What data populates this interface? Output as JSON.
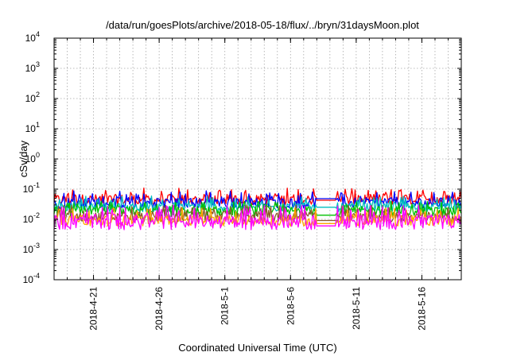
{
  "chart_data": {
    "type": "line",
    "title": "/data/run/goesPlots/archive/2018-05-18/flux/../bryn/31daysMoon.plot",
    "xlabel": "Coordinated Universal Time (UTC)",
    "ylabel": "cSv/day",
    "yscale": "log",
    "ylim": [
      0.0001,
      10000
    ],
    "xlim": [
      "2018-04-18T00:00",
      "2018-05-19T00:00"
    ],
    "grid": true,
    "legend": "none",
    "y_ticks": [
      {
        "base": "10",
        "exp": "-4",
        "value": 0.0001
      },
      {
        "base": "10",
        "exp": "-3",
        "value": 0.001
      },
      {
        "base": "10",
        "exp": "-2",
        "value": 0.01
      },
      {
        "base": "10",
        "exp": "-1",
        "value": 0.1
      },
      {
        "base": "10",
        "exp": "0",
        "value": 1
      },
      {
        "base": "10",
        "exp": "1",
        "value": 10
      },
      {
        "base": "10",
        "exp": "2",
        "value": 100
      },
      {
        "base": "10",
        "exp": "3",
        "value": 1000
      },
      {
        "base": "10",
        "exp": "4",
        "value": 10000
      }
    ],
    "x_ticks": [
      {
        "label": "2018-4-21",
        "date": "2018-04-21"
      },
      {
        "label": "2018-4-26",
        "date": "2018-04-26"
      },
      {
        "label": "2018-5-1",
        "date": "2018-05-01"
      },
      {
        "label": "2018-5-6",
        "date": "2018-05-06"
      },
      {
        "label": "2018-5-11",
        "date": "2018-05-11"
      },
      {
        "label": "2018-5-16",
        "date": "2018-05-16"
      }
    ],
    "data_gap": [
      "2018-05-08T00:00",
      "2018-05-09T12:00"
    ],
    "series": [
      {
        "color": "#ff0000",
        "baseline": 0.045,
        "spike_max": 0.11,
        "variation": 0.35
      },
      {
        "color": "#0000ff",
        "baseline": 0.035,
        "spike_max": 0.09,
        "variation": 0.35
      },
      {
        "color": "#00bfbf",
        "baseline": 0.025,
        "spike_max": 0.06,
        "variation": 0.3
      },
      {
        "color": "#00c000",
        "baseline": 0.018,
        "spike_max": 0.04,
        "variation": 0.35
      },
      {
        "color": "#8b5a2b",
        "baseline": 0.012,
        "spike_max": 0.03,
        "variation": 0.35
      },
      {
        "color": "#ffa500",
        "baseline": 0.009,
        "spike_max": 0.025,
        "variation": 0.35
      },
      {
        "color": "#ff00ff",
        "baseline": 0.008,
        "spike_max": 0.03,
        "variation": 0.5
      }
    ]
  }
}
